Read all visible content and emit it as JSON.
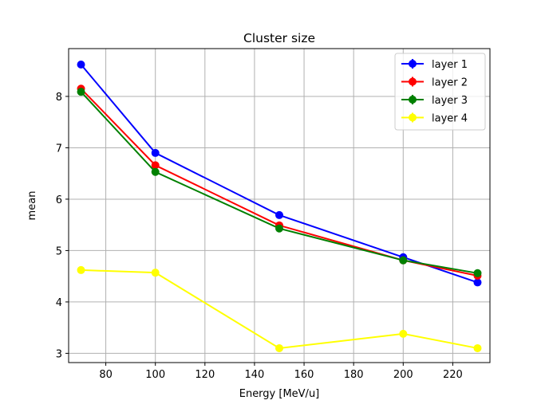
{
  "chart_data": {
    "type": "line",
    "title": "Cluster size",
    "xlabel": "Energy [MeV/u]",
    "ylabel": "mean",
    "x": [
      70,
      100,
      150,
      200,
      230
    ],
    "xlim": [
      65,
      235
    ],
    "ylim": [
      2.82,
      8.93
    ],
    "xticks": [
      "80",
      "100",
      "120",
      "140",
      "160",
      "180",
      "200",
      "220"
    ],
    "yticks": [
      "3",
      "4",
      "5",
      "6",
      "7",
      "8"
    ],
    "grid": true,
    "legend_position": "top-right",
    "series": [
      {
        "name": "layer 1",
        "color": "#0000ff",
        "values": [
          8.62,
          6.9,
          5.69,
          4.87,
          4.38
        ]
      },
      {
        "name": "layer 2",
        "color": "#ff0000",
        "values": [
          8.15,
          6.66,
          5.49,
          4.81,
          4.51
        ]
      },
      {
        "name": "layer 3",
        "color": "#008000",
        "values": [
          8.09,
          6.53,
          5.43,
          4.81,
          4.56
        ]
      },
      {
        "name": "layer 4",
        "color": "#ffff00",
        "values": [
          4.62,
          4.57,
          3.1,
          3.38,
          3.1
        ]
      }
    ]
  }
}
